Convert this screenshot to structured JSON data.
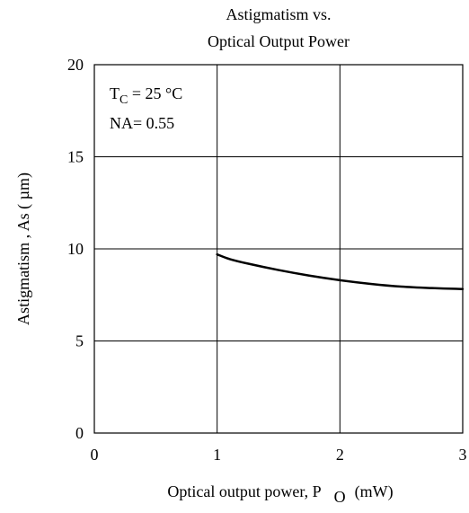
{
  "chart_data": {
    "type": "line",
    "title_lines": [
      "Astigmatism vs.",
      "Optical Output Power"
    ],
    "xlabel": {
      "text": "Optical output power,  P",
      "subscript": "O",
      "unit": "(mW)"
    },
    "ylabel": "Astigmatism  , As ( µm)",
    "xlim": [
      0,
      3
    ],
    "ylim": [
      0,
      20
    ],
    "x_ticks": [
      0,
      1,
      2,
      3
    ],
    "y_ticks": [
      0,
      5,
      10,
      15,
      20
    ],
    "grid": true,
    "annotations": {
      "temp": {
        "prefix": "T",
        "subscript": "C",
        "value": " = 25 °C"
      },
      "na": "NA= 0.55"
    },
    "series": [
      {
        "x": [
          1.0,
          1.1,
          1.25,
          1.5,
          1.75,
          2.0,
          2.25,
          2.5,
          2.75,
          3.0
        ],
        "y": [
          9.7,
          9.45,
          9.2,
          8.85,
          8.55,
          8.3,
          8.1,
          7.95,
          7.87,
          7.82
        ],
        "color": "#000000"
      }
    ]
  }
}
